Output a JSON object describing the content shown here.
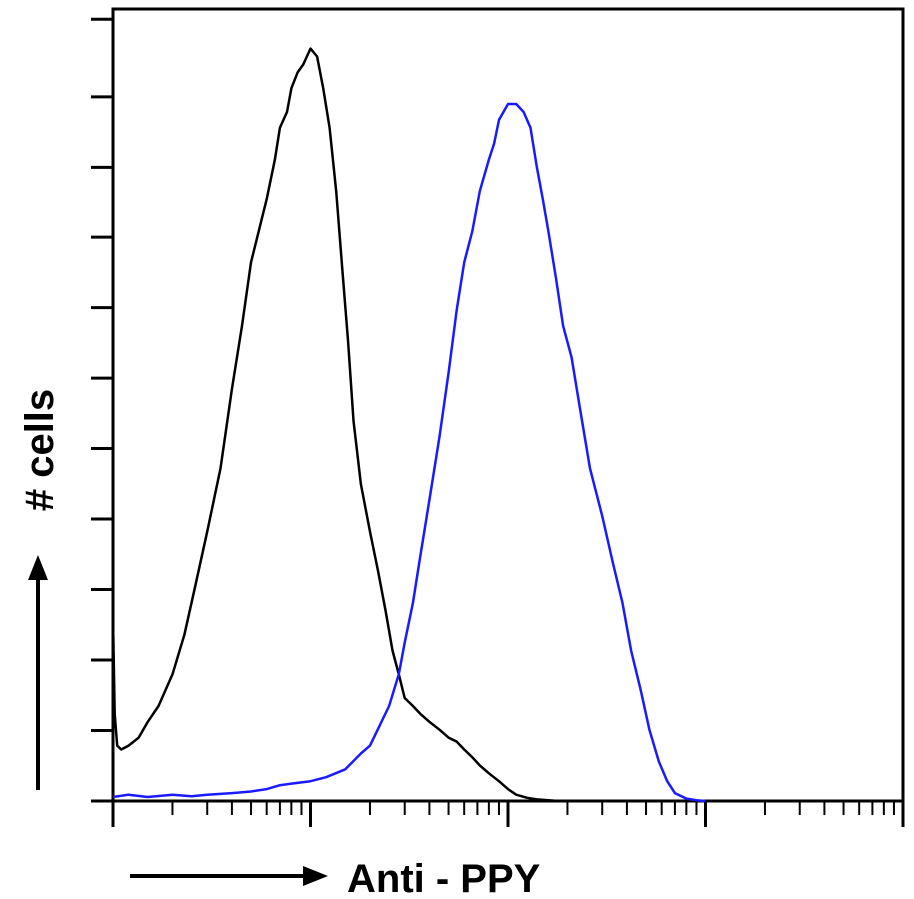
{
  "chart_data": {
    "type": "line",
    "title": "",
    "xlabel": "Anti - PPY",
    "ylabel": "# cells",
    "x_scale": "log",
    "xlim": [
      1,
      10000
    ],
    "ylim": [
      0,
      1
    ],
    "grid": false,
    "legend": "none",
    "colors": {
      "control": "#000000",
      "stained": "#1a1aff",
      "axis": "#000000"
    },
    "series": [
      {
        "color": "#000000",
        "x": [
          1,
          1.02,
          1.05,
          1.1,
          1.2,
          1.35,
          1.5,
          1.7,
          2.0,
          2.3,
          2.6,
          3.0,
          3.5,
          4.0,
          4.5,
          5.0,
          5.6,
          6.0,
          6.6,
          7.0,
          7.6,
          8.0,
          8.6,
          9.2,
          10.0,
          10.8,
          11.6,
          12.5,
          13.5,
          14.5,
          15.5,
          16.5,
          18,
          20,
          22,
          24,
          26,
          28,
          30,
          33,
          36,
          40,
          45,
          50,
          55,
          60,
          66,
          72,
          80,
          90,
          100,
          110,
          125,
          140,
          160,
          180,
          200
        ],
        "y": [
          0.23,
          0.11,
          0.07,
          0.065,
          0.07,
          0.08,
          0.1,
          0.12,
          0.16,
          0.21,
          0.27,
          0.34,
          0.42,
          0.52,
          0.6,
          0.68,
          0.73,
          0.76,
          0.81,
          0.85,
          0.87,
          0.9,
          0.92,
          0.93,
          0.95,
          0.94,
          0.9,
          0.85,
          0.77,
          0.67,
          0.58,
          0.48,
          0.4,
          0.34,
          0.29,
          0.24,
          0.19,
          0.16,
          0.13,
          0.12,
          0.11,
          0.1,
          0.09,
          0.08,
          0.075,
          0.065,
          0.055,
          0.045,
          0.035,
          0.025,
          0.015,
          0.008,
          0.004,
          0.002,
          0.001,
          0,
          0
        ]
      },
      {
        "color": "#1a1aff",
        "x": [
          1,
          1.2,
          1.5,
          2.0,
          2.5,
          3.0,
          4.0,
          5.0,
          6.0,
          7.0,
          8.0,
          10,
          12,
          15,
          18,
          20,
          25,
          28,
          30,
          33,
          36,
          40,
          45,
          50,
          55,
          60,
          66,
          72,
          80,
          85,
          90,
          100,
          110,
          120,
          130,
          140,
          150,
          160,
          175,
          190,
          210,
          230,
          260,
          300,
          340,
          380,
          420,
          470,
          520,
          580,
          640,
          700,
          800,
          900,
          1000
        ],
        "y": [
          0.005,
          0.008,
          0.005,
          0.008,
          0.006,
          0.008,
          0.01,
          0.012,
          0.015,
          0.02,
          0.022,
          0.025,
          0.03,
          0.04,
          0.06,
          0.07,
          0.12,
          0.16,
          0.2,
          0.25,
          0.31,
          0.38,
          0.46,
          0.54,
          0.62,
          0.68,
          0.72,
          0.77,
          0.81,
          0.83,
          0.86,
          0.88,
          0.88,
          0.87,
          0.85,
          0.8,
          0.76,
          0.72,
          0.66,
          0.6,
          0.56,
          0.5,
          0.42,
          0.36,
          0.3,
          0.25,
          0.19,
          0.14,
          0.09,
          0.05,
          0.025,
          0.01,
          0.003,
          0.001,
          0
        ]
      }
    ]
  }
}
